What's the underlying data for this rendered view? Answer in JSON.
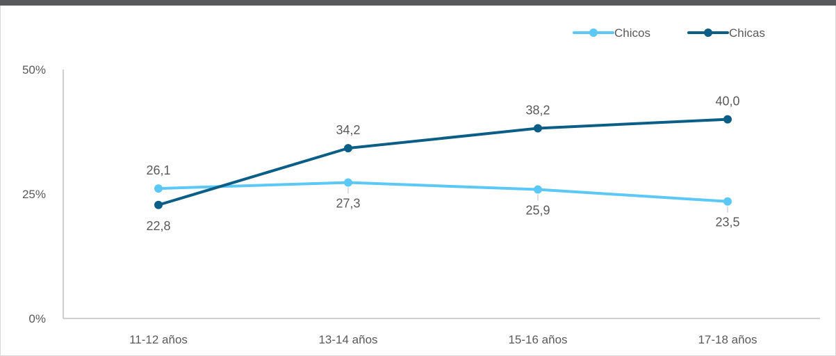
{
  "chart_data": {
    "type": "line",
    "title": "",
    "xlabel": "",
    "ylabel": "",
    "categories": [
      "11-12 años",
      "13-14 años",
      "15-16 años",
      "17-18 años"
    ],
    "ylim": [
      0,
      50
    ],
    "yticks": [
      0,
      25,
      50
    ],
    "ytick_labels": [
      "0%",
      "25%",
      "50%"
    ],
    "grid": false,
    "legend_position": "top-right",
    "series": [
      {
        "name": "Chicos",
        "values": [
          26.1,
          27.3,
          25.9,
          23.5
        ],
        "labels": [
          "26,1",
          "27,3",
          "25,9",
          "23,5"
        ],
        "label_side": [
          "above",
          "below",
          "below",
          "below"
        ],
        "color": "#5bc8f5"
      },
      {
        "name": "Chicas",
        "values": [
          22.8,
          34.2,
          38.2,
          40.0
        ],
        "labels": [
          "22,8",
          "34,2",
          "38,2",
          "40,0"
        ],
        "label_side": [
          "below",
          "above",
          "above",
          "above"
        ],
        "color": "#0b5e86"
      }
    ]
  }
}
